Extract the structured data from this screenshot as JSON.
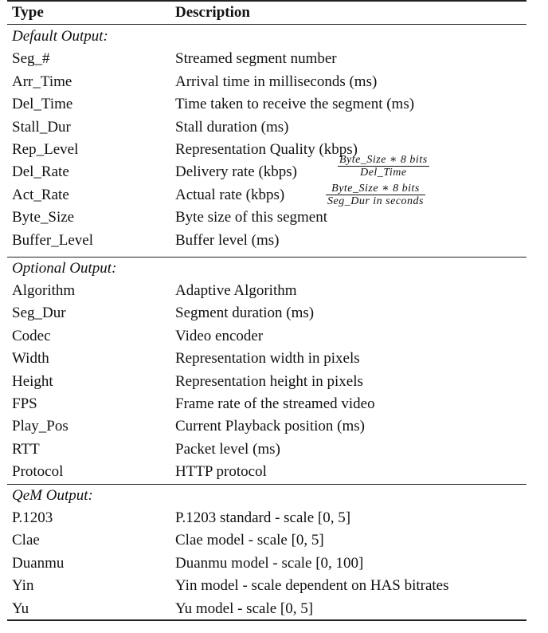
{
  "header": {
    "type": "Type",
    "description": "Description"
  },
  "sections": [
    {
      "title": "Default Output:",
      "rows": [
        {
          "type": "Seg_#",
          "desc": "Streamed segment number"
        },
        {
          "type": "Arr_Time",
          "desc": "Arrival time in milliseconds (ms)"
        },
        {
          "type": "Del_Time",
          "desc": "Time taken to receive the segment (ms)"
        },
        {
          "type": "Stall_Dur",
          "desc": "Stall duration (ms)"
        },
        {
          "type": "Rep_Level",
          "desc": "Representation Quality (kbps)"
        },
        {
          "type": "Del_Rate",
          "desc": "Delivery rate (kbps)",
          "formula": {
            "num": "Byte_Size ∗ 8 bits",
            "den": "Del_Time"
          }
        },
        {
          "type": "Act_Rate",
          "desc": "Actual rate (kbps)",
          "formula": {
            "num": "Byte_Size ∗ 8 bits",
            "den": "Seg_Dur in seconds"
          }
        },
        {
          "type": "Byte_Size",
          "desc": "Byte size of this segment"
        },
        {
          "type": "Buffer_Level",
          "desc": "Buffer level (ms)"
        }
      ]
    },
    {
      "title": "Optional Output:",
      "rows": [
        {
          "type": "Algorithm",
          "desc": "Adaptive Algorithm"
        },
        {
          "type": "Seg_Dur",
          "desc": "Segment duration (ms)"
        },
        {
          "type": "Codec",
          "desc": "Video encoder"
        },
        {
          "type": "Width",
          "desc": "Representation width in pixels"
        },
        {
          "type": "Height",
          "desc": "Representation height in pixels"
        },
        {
          "type": "FPS",
          "desc": "Frame rate of the streamed video"
        },
        {
          "type": "Play_Pos",
          "desc": "Current Playback position (ms)"
        },
        {
          "type": "RTT",
          "desc": "Packet level (ms)"
        },
        {
          "type": "Protocol",
          "desc": "HTTP protocol"
        }
      ]
    },
    {
      "title": "QeM Output:",
      "rows": [
        {
          "type": "P.1203",
          "desc": "P.1203 standard - scale [0, 5]"
        },
        {
          "type": "Clae",
          "desc": "Clae model - scale [0, 5]"
        },
        {
          "type": "Duanmu",
          "desc": "Duanmu model - scale [0, 100]"
        },
        {
          "type": "Yin",
          "desc": "Yin model - scale dependent on HAS bitrates"
        },
        {
          "type": "Yu",
          "desc": "Yu model - scale [0, 5]"
        }
      ]
    }
  ]
}
